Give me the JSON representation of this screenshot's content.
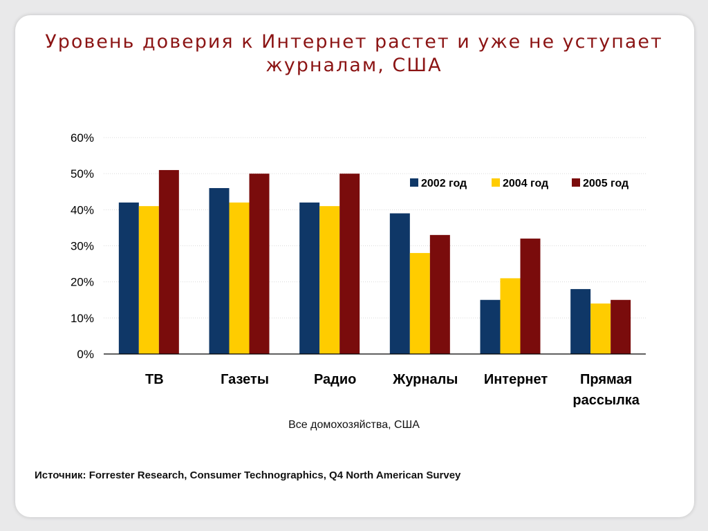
{
  "slide": {
    "title": "Уровень доверия к Интернет растет и уже не уступает журналам, США",
    "subtitle": "Все домохозяйства, США",
    "source": "Источник: Forrester Research, Consumer Technographics, Q4 North American Survey"
  },
  "chart_data": {
    "type": "bar",
    "title": "",
    "xlabel": "Все домохозяйства, США",
    "ylabel": "",
    "categories": [
      [
        "ТВ"
      ],
      [
        "Газеты"
      ],
      [
        "Радио"
      ],
      [
        "Журналы"
      ],
      [
        "Интернет"
      ],
      [
        "Прямая",
        "рассылка"
      ]
    ],
    "series": [
      {
        "name": "2002 год",
        "color": "#0f3767",
        "values": [
          42,
          46,
          42,
          39,
          15,
          18
        ]
      },
      {
        "name": "2004 год",
        "color": "#ffcc00",
        "values": [
          41,
          42,
          41,
          28,
          21,
          14
        ]
      },
      {
        "name": "2005 год",
        "color": "#7a0c0c",
        "values": [
          51,
          50,
          50,
          33,
          32,
          15
        ]
      }
    ],
    "ylim": [
      0,
      60
    ],
    "yticks": [
      0,
      10,
      20,
      30,
      40,
      50,
      60
    ],
    "ytick_format": "%",
    "grid": true,
    "legend": "top-right"
  }
}
